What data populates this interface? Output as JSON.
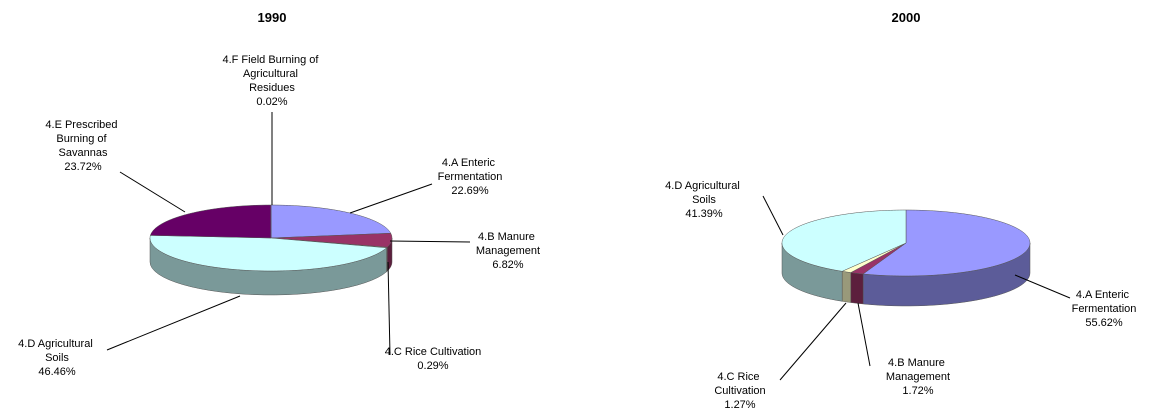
{
  "chart_data": [
    {
      "type": "pie3d",
      "subtitle": "1990",
      "categories": [
        "4.A Enteric Fermentation",
        "4.B Manure Management",
        "4.C Rice Cultivation",
        "4.D Agricultural Soils",
        "4.E Prescribed Burning of Savannas",
        "4.F Field Burning of Agricultural Residues"
      ],
      "values": [
        22.69,
        6.82,
        0.29,
        46.46,
        23.72,
        0.02
      ],
      "value_labels": [
        "22.69%",
        "6.82%",
        "0.29%",
        "46.46%",
        "23.72%",
        "0.02%"
      ],
      "colors": [
        "#9999ff",
        "#993366",
        "#ffffcc",
        "#ccffff",
        "#660066",
        "#ff8080"
      ]
    },
    {
      "type": "pie3d",
      "subtitle": "2000",
      "categories": [
        "4.A Enteric Fermentation",
        "4.B Manure Management",
        "4.C Rice Cultivation",
        "4.D Agricultural Soils"
      ],
      "values": [
        55.62,
        1.72,
        1.27,
        41.39
      ],
      "value_labels": [
        "55.62%",
        "1.72%",
        "1.27%",
        "41.39%"
      ],
      "colors": [
        "#9999ff",
        "#993366",
        "#ffffcc",
        "#ccffff"
      ]
    }
  ]
}
